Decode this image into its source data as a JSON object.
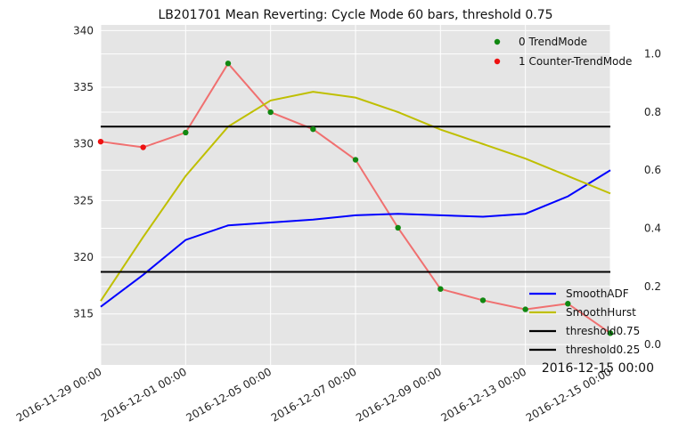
{
  "chart_data": {
    "type": "line",
    "title": "LB201701 Mean Reverting: Cycle Mode 60 bars, threshold 0.75",
    "corner_label": "2016-12-15 00:00",
    "x": [
      "2016-11-29 00:00",
      "2016-11-30 00:00",
      "2016-12-01 00:00",
      "2016-12-02 00:00",
      "2016-12-05 00:00",
      "2016-12-06 00:00",
      "2016-12-07 00:00",
      "2016-12-08 00:00",
      "2016-12-09 00:00",
      "2016-12-12 00:00",
      "2016-12-13 00:00",
      "2016-12-14 00:00",
      "2016-12-15 00:00"
    ],
    "x_tick_labels": [
      "2016-11-29 00:00",
      "2016-12-01 00:00",
      "2016-12-05 00:00",
      "2016-12-07 00:00",
      "2016-12-09 00:00",
      "2016-12-13 00:00",
      "2016-12-15 00:00"
    ],
    "y_left": {
      "ticks": [
        315,
        320,
        325,
        330,
        335,
        340
      ],
      "ylim": [
        310.5,
        340.5
      ]
    },
    "y_right": {
      "ticks": [
        "0.0",
        "0.2",
        "0.4",
        "0.6",
        "0.8",
        "1.0"
      ],
      "ylim": [
        -0.07,
        1.1
      ]
    },
    "price": {
      "color": "#f07070",
      "values": [
        330.2,
        329.7,
        331.0,
        337.1,
        332.8,
        331.3,
        328.6,
        322.6,
        317.2,
        316.2,
        315.4,
        315.9,
        313.3
      ]
    },
    "scatter_series": [
      {
        "name": "0 TrendMode",
        "color": "#118811"
      },
      {
        "name": "1 Counter-TrendMode",
        "color": "#ee1111"
      }
    ],
    "point_modes": [
      1,
      1,
      0,
      0,
      0,
      0,
      0,
      0,
      0,
      0,
      0,
      0,
      0
    ],
    "line_series": [
      {
        "name": "SmoothADF",
        "color": "#0000ff",
        "values": [
          0.13,
          0.24,
          0.36,
          0.41,
          0.42,
          0.43,
          0.445,
          0.45,
          0.445,
          0.44,
          0.45,
          0.51,
          0.6
        ]
      },
      {
        "name": "SmoothHurst",
        "color": "#bfbf00",
        "values": [
          0.15,
          0.37,
          0.58,
          0.75,
          0.84,
          0.87,
          0.85,
          0.8,
          0.74,
          0.69,
          0.64,
          0.58,
          0.52
        ]
      },
      {
        "name": "threshold0.75",
        "color": "#000000",
        "values": [
          0.75,
          0.75,
          0.75,
          0.75,
          0.75,
          0.75,
          0.75,
          0.75,
          0.75,
          0.75,
          0.75,
          0.75,
          0.75
        ]
      },
      {
        "name": "threshold0.25",
        "color": "#000000",
        "values": [
          0.25,
          0.25,
          0.25,
          0.25,
          0.25,
          0.25,
          0.25,
          0.25,
          0.25,
          0.25,
          0.25,
          0.25,
          0.25
        ]
      }
    ],
    "grid": true,
    "legend_top": "top-right",
    "legend_bottom": "bottom-right"
  }
}
